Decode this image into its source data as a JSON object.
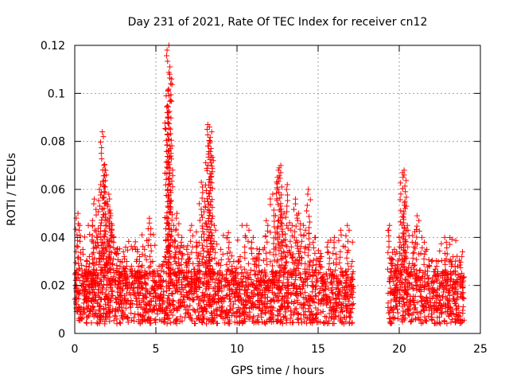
{
  "chart_data": {
    "type": "scatter",
    "title": "Day 231 of 2021, Rate Of TEC Index for receiver cn12",
    "xlabel": "GPS time / hours",
    "ylabel": "ROTI / TECUs",
    "xlim": [
      0,
      25
    ],
    "ylim": [
      0,
      0.12
    ],
    "xticks": [
      0,
      5,
      10,
      15,
      20,
      25
    ],
    "xtick_labels": [
      "0",
      "5",
      "10",
      "15",
      "20",
      "25"
    ],
    "yticks": [
      0,
      0.02,
      0.04,
      0.06,
      0.08,
      0.1,
      0.12
    ],
    "ytick_labels": [
      "0",
      "0.02",
      "0.04",
      "0.06",
      "0.08",
      "0.1",
      "0.12"
    ],
    "grid": true,
    "legend": "none",
    "marker": "plus",
    "color": "#ff0000",
    "data_gap_hours": [
      17.2,
      19.3
    ],
    "series": [
      {
        "x": [
          0.1,
          0.2,
          0.3,
          0.5,
          0.7,
          0.9,
          1.1,
          1.2,
          1.4,
          1.6,
          1.7,
          1.8,
          1.9,
          2.0,
          2.1,
          2.2,
          2.3,
          2.4,
          2.6,
          2.8,
          3.0,
          3.2,
          3.5,
          3.8,
          4.0,
          4.3,
          4.6,
          4.8,
          5.2,
          5.5,
          5.7,
          5.75,
          5.8,
          5.85,
          5.9,
          6.1,
          6.3,
          6.6,
          6.9,
          7.2,
          7.5,
          7.8,
          8.0,
          8.2,
          8.3,
          8.35,
          8.4,
          8.6,
          9.0,
          9.4,
          9.8,
          10.2,
          10.6,
          11.0,
          11.4,
          11.8,
          12.2,
          12.5,
          12.6,
          12.7,
          12.9,
          13.1,
          13.4,
          13.6,
          13.8,
          14.1,
          14.4,
          14.8,
          15.2,
          15.6,
          16.0,
          16.4,
          16.8,
          17.1,
          19.4,
          19.7,
          20.0,
          20.2,
          20.3,
          20.35,
          20.5,
          20.8,
          21.1,
          21.4,
          21.7,
          22.0,
          22.4,
          22.8,
          23.2,
          23.6,
          23.9
        ],
        "y": [
          0.012,
          0.05,
          0.045,
          0.035,
          0.028,
          0.032,
          0.045,
          0.056,
          0.04,
          0.062,
          0.084,
          0.07,
          0.068,
          0.055,
          0.058,
          0.05,
          0.045,
          0.04,
          0.035,
          0.03,
          0.034,
          0.03,
          0.028,
          0.03,
          0.032,
          0.035,
          0.048,
          0.03,
          0.028,
          0.03,
          0.092,
          0.101,
          0.12,
          0.108,
          0.077,
          0.045,
          0.05,
          0.04,
          0.035,
          0.045,
          0.038,
          0.063,
          0.055,
          0.087,
          0.086,
          0.08,
          0.074,
          0.045,
          0.035,
          0.04,
          0.03,
          0.032,
          0.045,
          0.04,
          0.035,
          0.047,
          0.058,
          0.065,
          0.069,
          0.07,
          0.05,
          0.062,
          0.045,
          0.056,
          0.05,
          0.045,
          0.06,
          0.04,
          0.032,
          0.038,
          0.04,
          0.043,
          0.045,
          0.03,
          0.045,
          0.035,
          0.04,
          0.067,
          0.068,
          0.055,
          0.045,
          0.038,
          0.049,
          0.04,
          0.035,
          0.03,
          0.03,
          0.04,
          0.03,
          0.028,
          0.034
        ]
      }
    ]
  }
}
